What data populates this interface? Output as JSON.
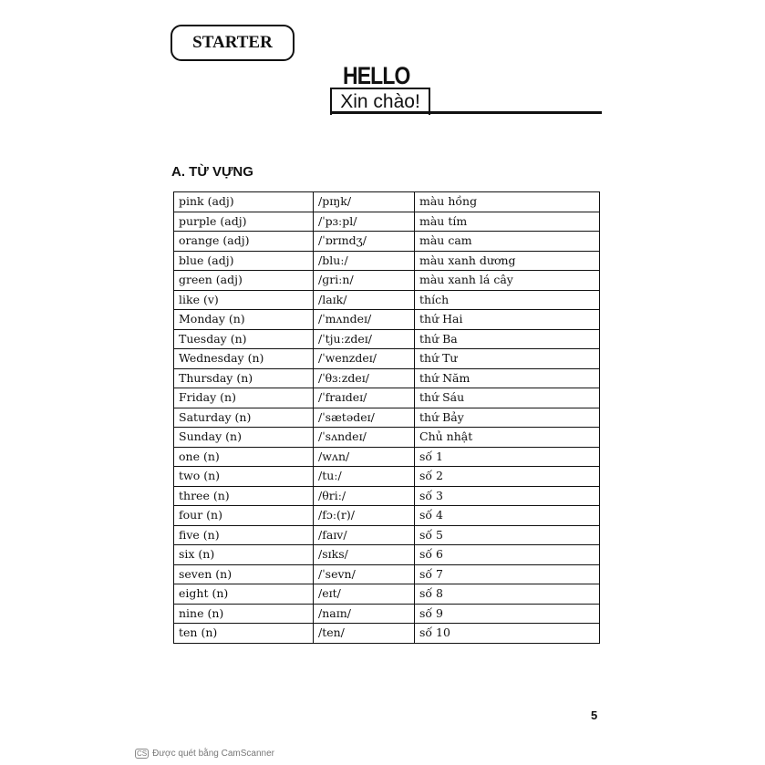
{
  "header": {
    "badge": "STARTER",
    "title": "HELLO",
    "subtitle": "Xin chào!"
  },
  "section_title": "A. TỪ VỰNG",
  "vocab": [
    [
      "pink (adj)",
      "/pɪŋk/",
      "màu hồng"
    ],
    [
      "purple (adj)",
      "/ˈpɜːpl/",
      "màu tím"
    ],
    [
      "orange (adj)",
      "/ˈɒrɪndʒ/",
      "màu cam"
    ],
    [
      "blue (adj)",
      "/bluː/",
      "màu xanh dương"
    ],
    [
      "green (adj)",
      "/ɡriːn/",
      "màu xanh lá cây"
    ],
    [
      "like (v)",
      "/laɪk/",
      "thích"
    ],
    [
      "Monday (n)",
      "/ˈmʌndeɪ/",
      "thứ Hai"
    ],
    [
      "Tuesday (n)",
      "/ˈtjuːzdeɪ/",
      "thứ Ba"
    ],
    [
      "Wednesday (n)",
      "/ˈwenzdeɪ/",
      "thứ Tư"
    ],
    [
      "Thursday (n)",
      "/ˈθɜːzdeɪ/",
      "thứ Năm"
    ],
    [
      "Friday (n)",
      "/ˈfraɪdeɪ/",
      "thứ Sáu"
    ],
    [
      "Saturday (n)",
      "/ˈsætədeɪ/",
      "thứ Bảy"
    ],
    [
      "Sunday (n)",
      "/ˈsʌndeɪ/",
      "Chủ nhật"
    ],
    [
      "one (n)",
      "/wʌn/",
      "số 1"
    ],
    [
      "two (n)",
      "/tuː/",
      "số 2"
    ],
    [
      "three (n)",
      "/θriː/",
      "số 3"
    ],
    [
      "four (n)",
      "/fɔː(r)/",
      "số 4"
    ],
    [
      "five (n)",
      "/faɪv/",
      "số 5"
    ],
    [
      "six (n)",
      "/sɪks/",
      "số 6"
    ],
    [
      "seven (n)",
      "/ˈsevn/",
      "số 7"
    ],
    [
      "eight (n)",
      "/eɪt/",
      "số 8"
    ],
    [
      "nine (n)",
      "/naɪn/",
      "số 9"
    ],
    [
      "ten (n)",
      "/ten/",
      "số 10"
    ]
  ],
  "page_number": "5",
  "footer": {
    "logo": "CS",
    "text": "Được quét bằng CamScanner"
  }
}
